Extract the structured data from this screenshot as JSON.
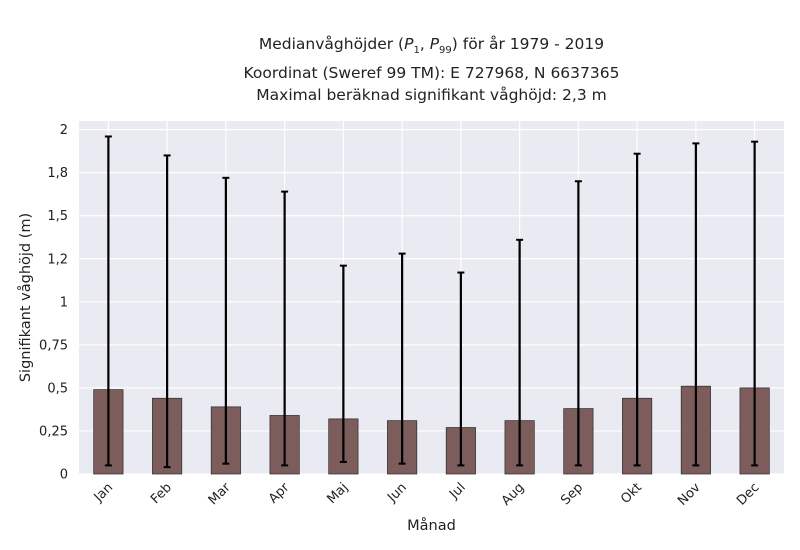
{
  "chart_data": {
    "type": "bar",
    "title_lines": [
      "Medianvåghöjder (P1, P99) för år 1979 - 2019",
      "Koordinat (Sweref 99 TM): E 727968, N 6637365",
      "Maximal beräknad signifikant våghöjd: 2,3 m"
    ],
    "xlabel": "Månad",
    "ylabel": "Signifikant våghöjd (m)",
    "categories": [
      "Jan",
      "Feb",
      "Mar",
      "Apr",
      "Maj",
      "Jun",
      "Jul",
      "Aug",
      "Sep",
      "Okt",
      "Nov",
      "Dec"
    ],
    "values": [
      0.49,
      0.44,
      0.39,
      0.34,
      0.32,
      0.31,
      0.27,
      0.31,
      0.38,
      0.44,
      0.51,
      0.5
    ],
    "p1": [
      0.05,
      0.04,
      0.06,
      0.05,
      0.07,
      0.06,
      0.05,
      0.05,
      0.05,
      0.05,
      0.05,
      0.05
    ],
    "p99": [
      1.96,
      1.85,
      1.72,
      1.64,
      1.21,
      1.28,
      1.17,
      1.36,
      1.7,
      1.86,
      1.92,
      1.93
    ],
    "ylim": [
      0,
      2.05
    ],
    "yticks": [
      0,
      0.25,
      0.5,
      0.75,
      1,
      1.25,
      1.5,
      1.75,
      2
    ],
    "ytick_labels": [
      "0",
      "0,25",
      "0,5",
      "0,75",
      "1",
      "1,2",
      "1,5",
      "1,8",
      "2"
    ],
    "grid": true,
    "bar_color": "#7d5c5c",
    "errorbar_color": "#000000",
    "plot_background": "#eaeaf2"
  }
}
